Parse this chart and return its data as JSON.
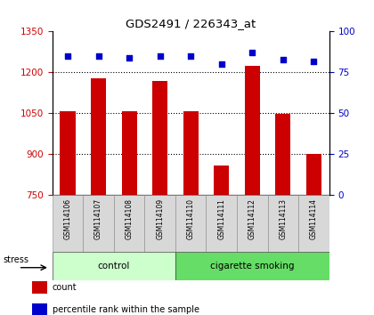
{
  "title": "GDS2491 / 226343_at",
  "samples": [
    "GSM114106",
    "GSM114107",
    "GSM114108",
    "GSM114109",
    "GSM114110",
    "GSM114111",
    "GSM114112",
    "GSM114113",
    "GSM114114"
  ],
  "bar_values": [
    1057,
    1178,
    1057,
    1170,
    1058,
    860,
    1225,
    1047,
    900
  ],
  "percentile_values": [
    85,
    85,
    84,
    85,
    85,
    80,
    87,
    83,
    82
  ],
  "bar_color": "#cc0000",
  "dot_color": "#0000cc",
  "ylim_left": [
    750,
    1350
  ],
  "ylim_right": [
    0,
    100
  ],
  "yticks_left": [
    750,
    900,
    1050,
    1200,
    1350
  ],
  "yticks_right": [
    0,
    25,
    50,
    75,
    100
  ],
  "grid_ticks": [
    900,
    1050,
    1200
  ],
  "group_labels": [
    "control",
    "cigarette smoking"
  ],
  "group_ranges": [
    [
      0,
      3
    ],
    [
      4,
      8
    ]
  ],
  "group_colors_light": [
    "#ccffcc",
    "#66dd66"
  ],
  "stress_label": "stress",
  "legend_items": [
    {
      "label": "count",
      "color": "#cc0000"
    },
    {
      "label": "percentile rank within the sample",
      "color": "#0000cc"
    }
  ],
  "bar_color_left": "#cc0000",
  "bar_color_right": "#0000cc",
  "bar_width": 0.5,
  "figsize": [
    4.2,
    3.54
  ],
  "dpi": 100,
  "tick_label_color_left": "#cc0000",
  "tick_label_color_right": "#0000cc"
}
